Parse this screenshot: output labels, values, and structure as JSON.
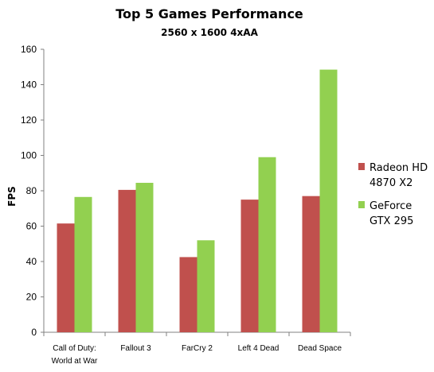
{
  "chart_data": {
    "type": "bar",
    "title": "Top 5 Games Performance",
    "subtitle": "2560 x 1600 4xAA",
    "xlabel": "",
    "ylabel": "FPS",
    "ylim": [
      0,
      160
    ],
    "yticks": [
      0,
      20,
      40,
      60,
      80,
      100,
      120,
      140,
      160
    ],
    "grid": false,
    "legend_position": "right",
    "categories": [
      [
        "Call of Duty:",
        "World at War"
      ],
      [
        "Fallout 3"
      ],
      [
        "FarCry 2"
      ],
      [
        "Left 4 Dead"
      ],
      [
        "Dead Space"
      ]
    ],
    "series": [
      {
        "name": "Radeon HD 4870 X2",
        "legend_lines": [
          "Radeon HD",
          "4870 X2"
        ],
        "color": "#c0504d",
        "values": [
          61.5,
          80.5,
          42.5,
          75,
          77
        ]
      },
      {
        "name": "GeForce GTX 295",
        "legend_lines": [
          "GeForce",
          "GTX 295"
        ],
        "color": "#92d050",
        "values": [
          76.5,
          84.5,
          52,
          99,
          148.5
        ]
      }
    ]
  }
}
